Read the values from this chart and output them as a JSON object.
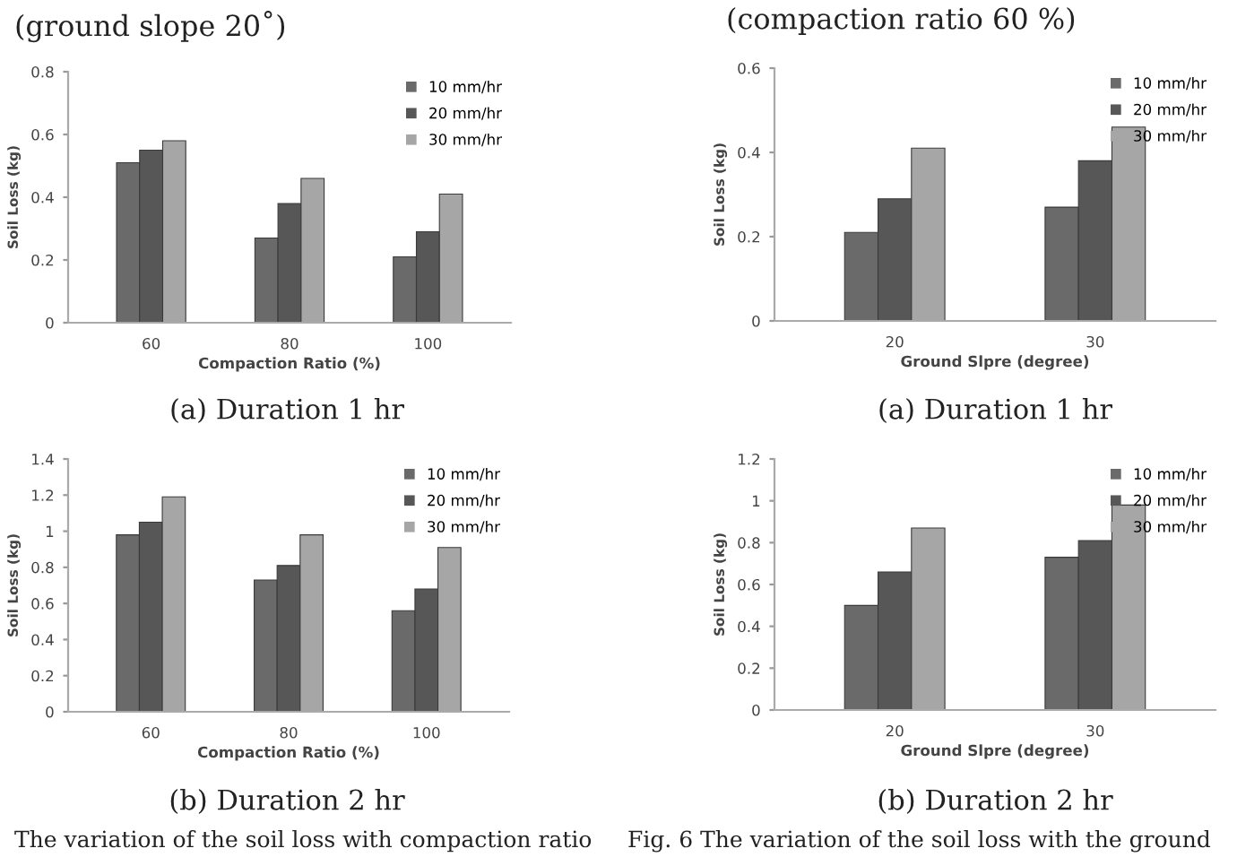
{
  "chart_data": [
    {
      "type": "bar",
      "categories": [
        "60",
        "80",
        "100"
      ],
      "xlabel": "Compaction Ratio (%)",
      "ylabel": "Soil Loss (kg)",
      "ylim": [
        0,
        0.8
      ],
      "yticks": [
        0,
        0.2,
        0.4,
        0.6,
        0.8
      ],
      "legend": "top right",
      "grid": false,
      "annotations": [
        "(ground slope 20˚)",
        "(a) Duration 1 hr"
      ],
      "series": [
        {
          "name": "10 mm/hr",
          "color": "#6a6a6a",
          "values": [
            0.51,
            0.27,
            0.21
          ]
        },
        {
          "name": "20 mm/hr",
          "color": "#575757",
          "values": [
            0.55,
            0.38,
            0.29
          ]
        },
        {
          "name": "30 mm/hr",
          "color": "#a6a6a6",
          "values": [
            0.58,
            0.46,
            0.41
          ]
        }
      ]
    },
    {
      "type": "bar",
      "categories": [
        "20",
        "30"
      ],
      "xlabel": "Ground Slpre (degree)",
      "ylabel": "Soil Loss (kg)",
      "ylim": [
        0,
        0.6
      ],
      "yticks": [
        0,
        0.2,
        0.4,
        0.6
      ],
      "legend": "top right",
      "grid": false,
      "annotations": [
        "(compaction ratio 60 %)",
        "(a) Duration 1 hr"
      ],
      "series": [
        {
          "name": "10 mm/hr",
          "color": "#6a6a6a",
          "values": [
            0.21,
            0.27
          ]
        },
        {
          "name": "20 mm/hr",
          "color": "#575757",
          "values": [
            0.29,
            0.38
          ]
        },
        {
          "name": "30 mm/hr",
          "color": "#a6a6a6",
          "values": [
            0.41,
            0.46
          ]
        }
      ]
    },
    {
      "type": "bar",
      "categories": [
        "60",
        "80",
        "100"
      ],
      "xlabel": "Compaction Ratio (%)",
      "ylabel": "Soil Loss (kg)",
      "ylim": [
        0,
        1.4
      ],
      "yticks": [
        0,
        0.2,
        0.4,
        0.6,
        0.8,
        1,
        1.2,
        1.4
      ],
      "legend": "top right",
      "grid": false,
      "annotations": [
        "(b) Duration 2 hr",
        "The variation of the soil loss with compaction ratio"
      ],
      "series": [
        {
          "name": "10 mm/hr",
          "color": "#6a6a6a",
          "values": [
            0.98,
            0.73,
            0.56
          ]
        },
        {
          "name": "20 mm/hr",
          "color": "#575757",
          "values": [
            1.05,
            0.81,
            0.68
          ]
        },
        {
          "name": "30 mm/hr",
          "color": "#a6a6a6",
          "values": [
            1.19,
            0.98,
            0.91
          ]
        }
      ]
    },
    {
      "type": "bar",
      "categories": [
        "20",
        "30"
      ],
      "xlabel": "Ground Slpre (degree)",
      "ylabel": "Soil Loss (kg)",
      "ylim": [
        0,
        1.2
      ],
      "yticks": [
        0,
        0.2,
        0.4,
        0.6,
        0.8,
        1,
        1.2
      ],
      "legend": "top right",
      "grid": false,
      "annotations": [
        "(b) Duration 2 hr",
        "Fig. 6 The variation of the soil loss with the ground"
      ],
      "series": [
        {
          "name": "10 mm/hr",
          "color": "#6a6a6a",
          "values": [
            0.5,
            0.73
          ]
        },
        {
          "name": "20 mm/hr",
          "color": "#575757",
          "values": [
            0.66,
            0.81
          ]
        },
        {
          "name": "30 mm/hr",
          "color": "#a6a6a6",
          "values": [
            0.87,
            0.98
          ]
        }
      ]
    }
  ]
}
